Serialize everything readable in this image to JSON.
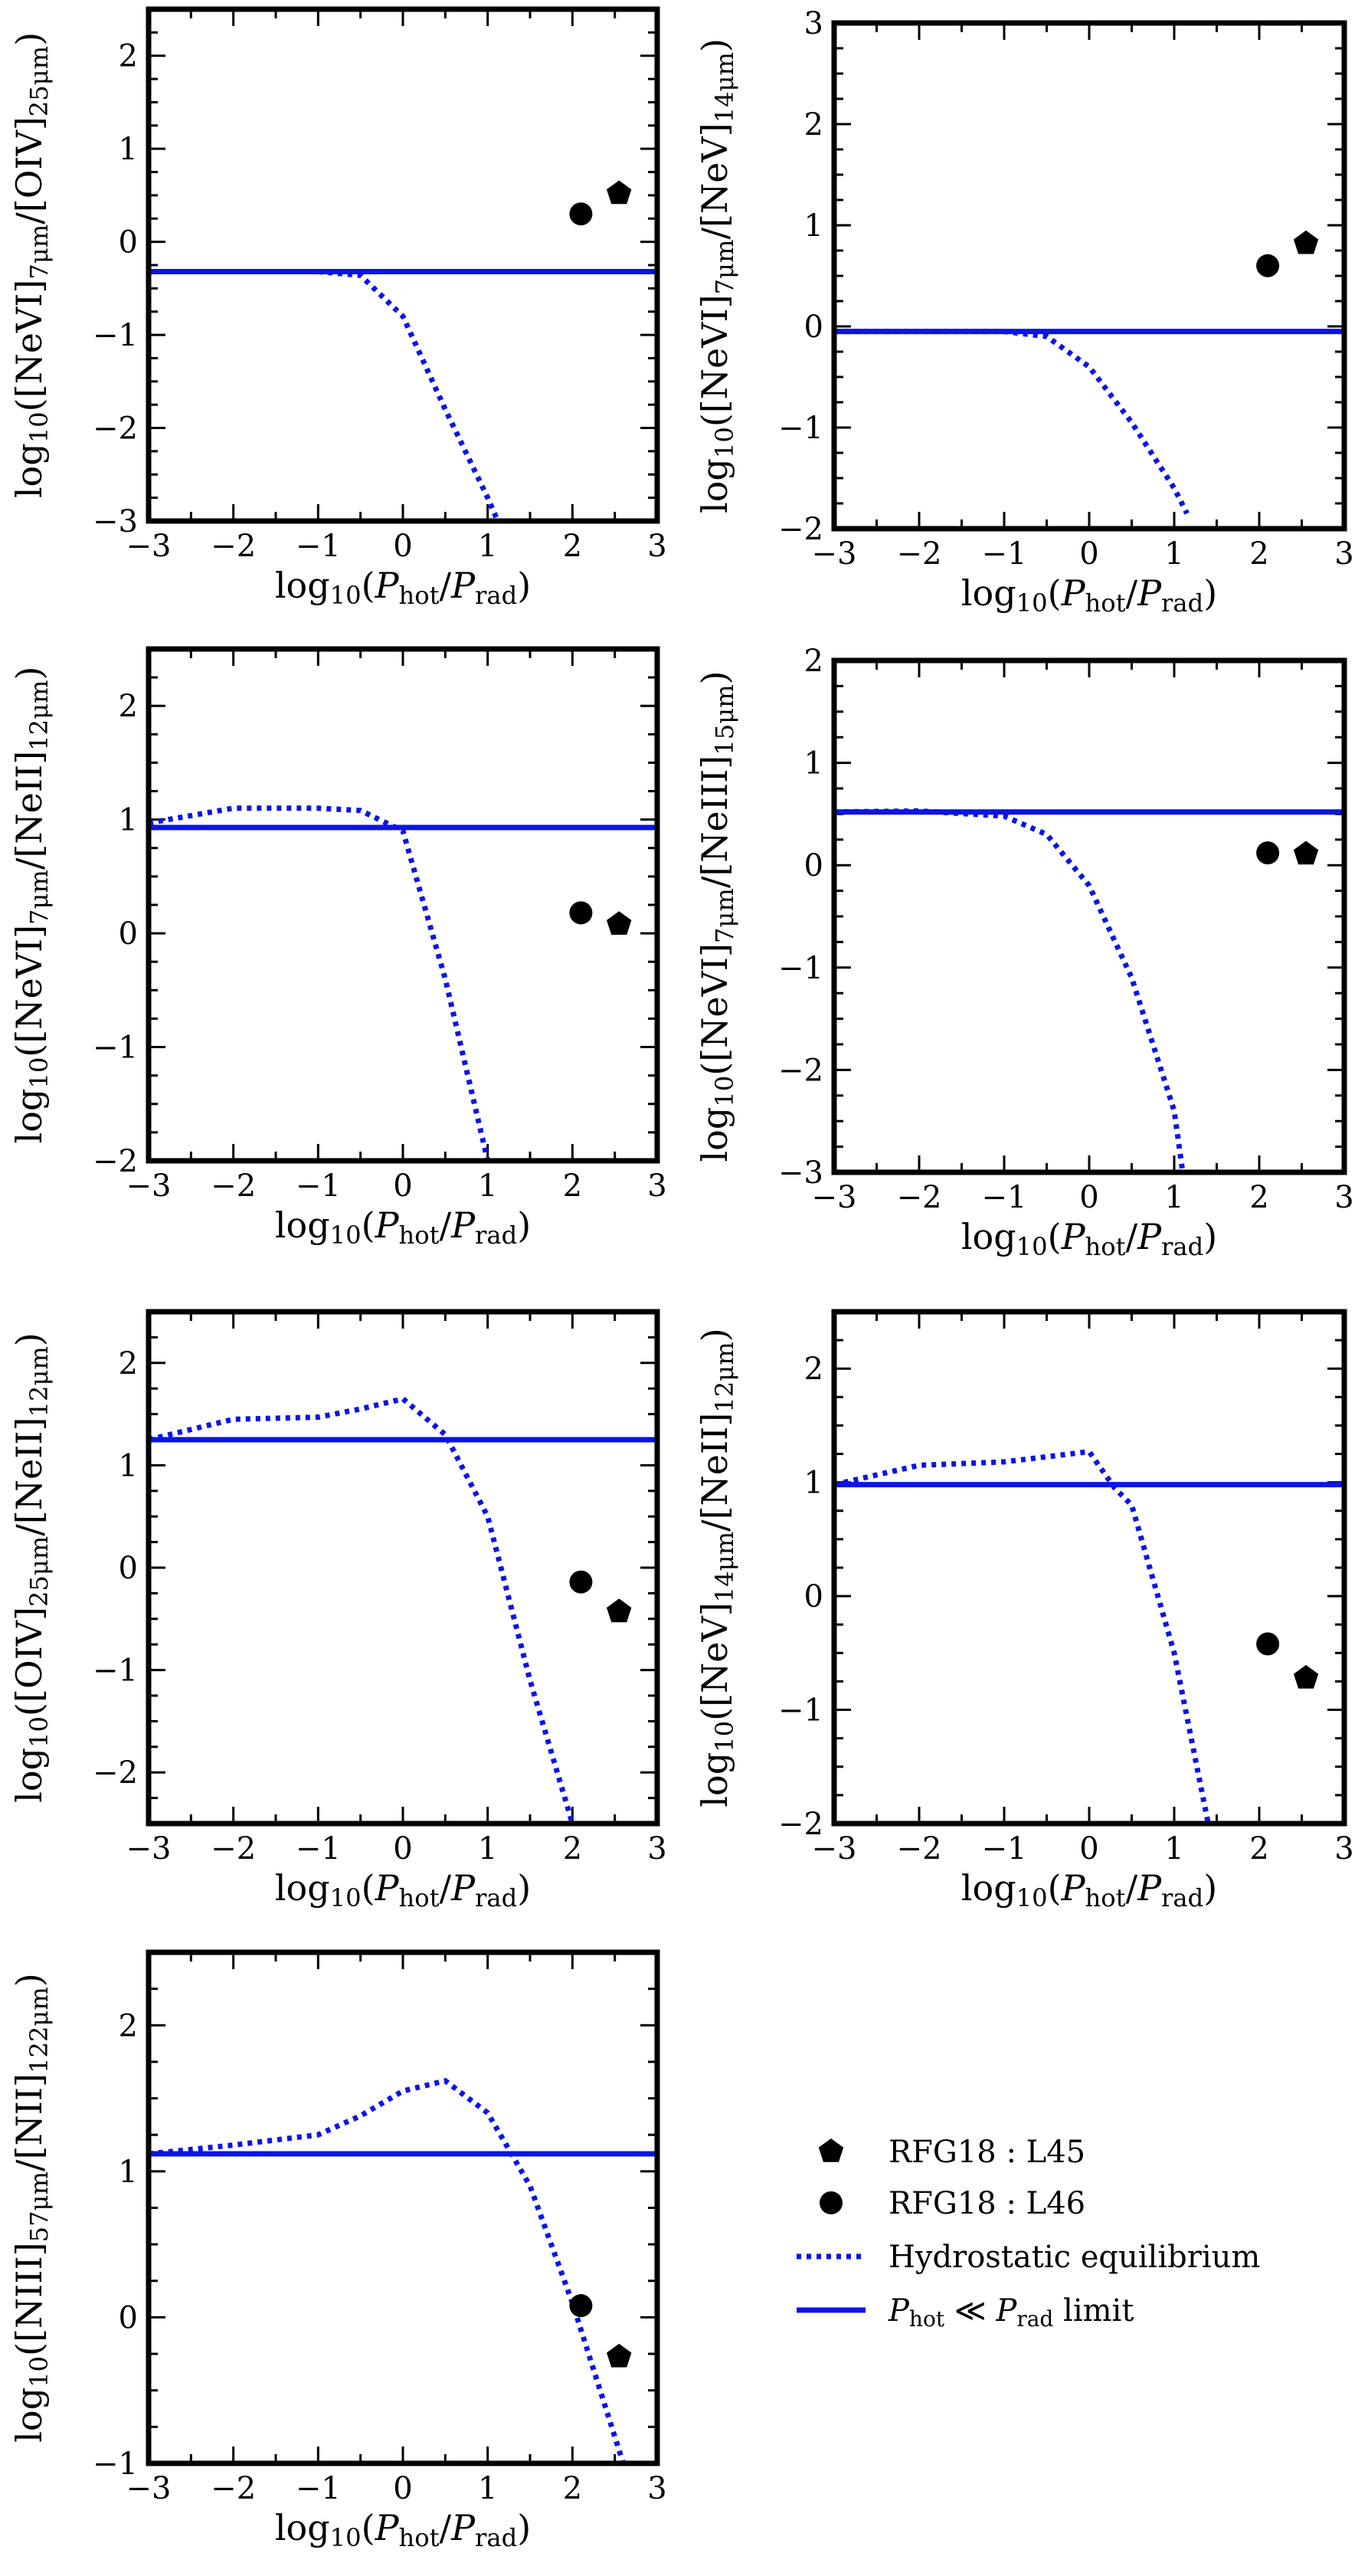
{
  "colors": {
    "model": "#0a14e6",
    "points": "#000000",
    "axes": "#000000"
  },
  "legend": {
    "placement": "bottom-right",
    "entries": [
      {
        "key": "l45",
        "marker": "pentagon",
        "label": "RFG18 : L45"
      },
      {
        "key": "l46",
        "marker": "circle",
        "label": "RFG18 : L46"
      },
      {
        "key": "hydro",
        "marker": "dotted-line",
        "label": "Hydrostatic equilibrium"
      },
      {
        "key": "limit",
        "marker": "solid-line",
        "label": "P_hot ≪ P_rad limit"
      }
    ]
  },
  "chart_data": [
    {
      "type": "line",
      "xlabel": "log10(P_hot/P_rad)",
      "ylabel": "log10([NeVI]7μm/[OIV]25μm)",
      "xlim": [
        -3,
        3
      ],
      "ylim": [
        -3,
        2.5
      ],
      "xticks": [
        -3,
        -2,
        -1,
        0,
        1,
        2,
        3
      ],
      "yticks": [
        -3,
        -2,
        -1,
        0,
        1,
        2
      ],
      "limit_line": -0.32,
      "hydrostatic": {
        "x": [
          -3,
          -2,
          -1,
          -0.5,
          0,
          0.5,
          1,
          1.12
        ],
        "y": [
          -0.32,
          -0.32,
          -0.32,
          -0.36,
          -0.8,
          -1.8,
          -2.75,
          -3
        ]
      },
      "points": [
        {
          "name": "RFG18 : L46",
          "marker": "circle",
          "x": 2.1,
          "y": 0.3
        },
        {
          "name": "RFG18 : L45",
          "marker": "pentagon",
          "x": 2.55,
          "y": 0.52
        }
      ]
    },
    {
      "type": "line",
      "xlabel": "log10(P_hot/P_rad)",
      "ylabel": "log10([NeVI]7μm/[NeV]14μm)",
      "xlim": [
        -3,
        3
      ],
      "ylim": [
        -2,
        3
      ],
      "xticks": [
        -3,
        -2,
        -1,
        0,
        1,
        2,
        3
      ],
      "yticks": [
        -2,
        -1,
        0,
        1,
        2,
        3
      ],
      "limit_line": -0.05,
      "hydrostatic": {
        "x": [
          -3,
          -2,
          -1,
          -0.5,
          0,
          0.5,
          1,
          1.15
        ],
        "y": [
          -0.05,
          -0.05,
          -0.05,
          -0.1,
          -0.4,
          -0.95,
          -1.6,
          -1.85
        ]
      },
      "points": [
        {
          "name": "RFG18 : L46",
          "marker": "circle",
          "x": 2.1,
          "y": 0.6
        },
        {
          "name": "RFG18 : L45",
          "marker": "pentagon",
          "x": 2.55,
          "y": 0.82
        }
      ]
    },
    {
      "type": "line",
      "xlabel": "log10(P_hot/P_rad)",
      "ylabel": "log10([NeVI]7μm/[NeII]12μm)",
      "xlim": [
        -3,
        3
      ],
      "ylim": [
        -2,
        2.5
      ],
      "xticks": [
        -3,
        -2,
        -1,
        0,
        1,
        2,
        3
      ],
      "yticks": [
        -2,
        -1,
        0,
        1,
        2
      ],
      "limit_line": 0.93,
      "hydrostatic": {
        "x": [
          -3,
          -2,
          -1.5,
          -1,
          -0.5,
          0,
          0.5,
          1
        ],
        "y": [
          0.97,
          1.1,
          1.1,
          1.1,
          1.08,
          0.9,
          -0.4,
          -2
        ]
      },
      "points": [
        {
          "name": "RFG18 : L46",
          "marker": "circle",
          "x": 2.1,
          "y": 0.18
        },
        {
          "name": "RFG18 : L45",
          "marker": "pentagon",
          "x": 2.55,
          "y": 0.08
        }
      ]
    },
    {
      "type": "line",
      "xlabel": "log10(P_hot/P_rad)",
      "ylabel": "log10([NeVI]7μm/[NeIII]15μm)",
      "xlim": [
        -3,
        3
      ],
      "ylim": [
        -3,
        2
      ],
      "xticks": [
        -3,
        -2,
        -1,
        0,
        1,
        2,
        3
      ],
      "yticks": [
        -3,
        -2,
        -1,
        0,
        1,
        2
      ],
      "limit_line": 0.52,
      "hydrostatic": {
        "x": [
          -3,
          -2,
          -1,
          -0.5,
          0,
          0.5,
          1,
          1.1
        ],
        "y": [
          0.52,
          0.53,
          0.48,
          0.3,
          -0.2,
          -1.1,
          -2.4,
          -3
        ]
      },
      "points": [
        {
          "name": "RFG18 : L46",
          "marker": "circle",
          "x": 2.1,
          "y": 0.12
        },
        {
          "name": "RFG18 : L45",
          "marker": "pentagon",
          "x": 2.55,
          "y": 0.11
        }
      ]
    },
    {
      "type": "line",
      "xlabel": "log10(P_hot/P_rad)",
      "ylabel": "log10([OIV]25μm/[NeII]12μm)",
      "xlim": [
        -3,
        3
      ],
      "ylim": [
        -2.5,
        2.5
      ],
      "xticks": [
        -3,
        -2,
        -1,
        0,
        1,
        2,
        3
      ],
      "yticks": [
        -2,
        -1,
        0,
        1,
        2
      ],
      "limit_line": 1.25,
      "hydrostatic": {
        "x": [
          -3,
          -2,
          -1,
          -0.5,
          0,
          0.5,
          1,
          1.5,
          2
        ],
        "y": [
          1.25,
          1.45,
          1.47,
          1.55,
          1.65,
          1.3,
          0.5,
          -1.1,
          -2.5
        ]
      },
      "points": [
        {
          "name": "RFG18 : L46",
          "marker": "circle",
          "x": 2.1,
          "y": -0.14
        },
        {
          "name": "RFG18 : L45",
          "marker": "pentagon",
          "x": 2.55,
          "y": -0.43
        }
      ]
    },
    {
      "type": "line",
      "xlabel": "log10(P_hot/P_rad)",
      "ylabel": "log10([NeV]14μm/[NeII]12μm)",
      "xlim": [
        -3,
        3
      ],
      "ylim": [
        -2,
        2.5
      ],
      "xticks": [
        -3,
        -2,
        -1,
        0,
        1,
        2,
        3
      ],
      "yticks": [
        -2,
        -1,
        0,
        1,
        2
      ],
      "limit_line": 0.98,
      "hydrostatic": {
        "x": [
          -3,
          -2,
          -1,
          0,
          0.3,
          0.5,
          1,
          1.4
        ],
        "y": [
          0.98,
          1.15,
          1.18,
          1.27,
          0.95,
          0.8,
          -0.5,
          -2
        ]
      },
      "points": [
        {
          "name": "RFG18 : L46",
          "marker": "circle",
          "x": 2.1,
          "y": -0.42
        },
        {
          "name": "RFG18 : L45",
          "marker": "pentagon",
          "x": 2.55,
          "y": -0.72
        }
      ]
    },
    {
      "type": "line",
      "xlabel": "log10(P_hot/P_rad)",
      "ylabel": "log10([NIII]57μm/[NII]122μm)",
      "xlim": [
        -3,
        3
      ],
      "ylim": [
        -1,
        2.5
      ],
      "xticks": [
        -3,
        -2,
        -1,
        0,
        1,
        2,
        3
      ],
      "yticks": [
        -1,
        0,
        1,
        2
      ],
      "limit_line": 1.12,
      "hydrostatic": {
        "x": [
          -3,
          -2,
          -1,
          -0.5,
          0,
          0.5,
          1,
          1.5,
          2,
          2.6
        ],
        "y": [
          1.12,
          1.18,
          1.25,
          1.38,
          1.55,
          1.62,
          1.4,
          0.9,
          0.1,
          -1
        ]
      },
      "points": [
        {
          "name": "RFG18 : L46",
          "marker": "circle",
          "x": 2.1,
          "y": 0.08
        },
        {
          "name": "RFG18 : L45",
          "marker": "pentagon",
          "x": 2.55,
          "y": -0.27
        }
      ]
    }
  ]
}
